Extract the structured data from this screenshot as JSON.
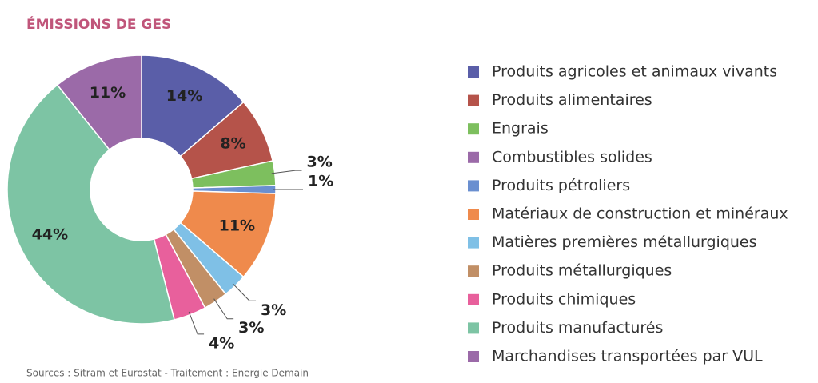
{
  "chart_data": {
    "type": "donut",
    "title": "ÉMISSIONS DE GES",
    "source": "Sources : Sitram et Eurostat - Traitement : Energie Demain",
    "categories": [
      "Produits agricoles et animaux vivants",
      "Produits alimentaires",
      "Engrais",
      "Combustibles solides",
      "Produits pétroliers",
      "Matériaux de construction et minéraux",
      "Matières premières métallurgiques",
      "Produits métallurgiques",
      "Produits chimiques",
      "Produits manufacturés",
      "Marchandises transportées par VUL"
    ],
    "values": [
      14,
      8,
      3,
      0,
      1,
      11,
      3,
      3,
      4,
      44,
      11
    ],
    "value_labels": [
      "14%",
      "8%",
      "3%",
      null,
      "1%",
      "11%",
      "3%",
      "3%",
      "4%",
      "44%",
      "11%"
    ],
    "colors": [
      "#5a5ea8",
      "#b5534a",
      "#7dbf5e",
      "#9b6aa8",
      "#6a8fd0",
      "#ef8a4c",
      "#7fc0e6",
      "#c18f66",
      "#e8609c",
      "#7dc4a4",
      "#9b6aa8"
    ],
    "legend": "right"
  }
}
